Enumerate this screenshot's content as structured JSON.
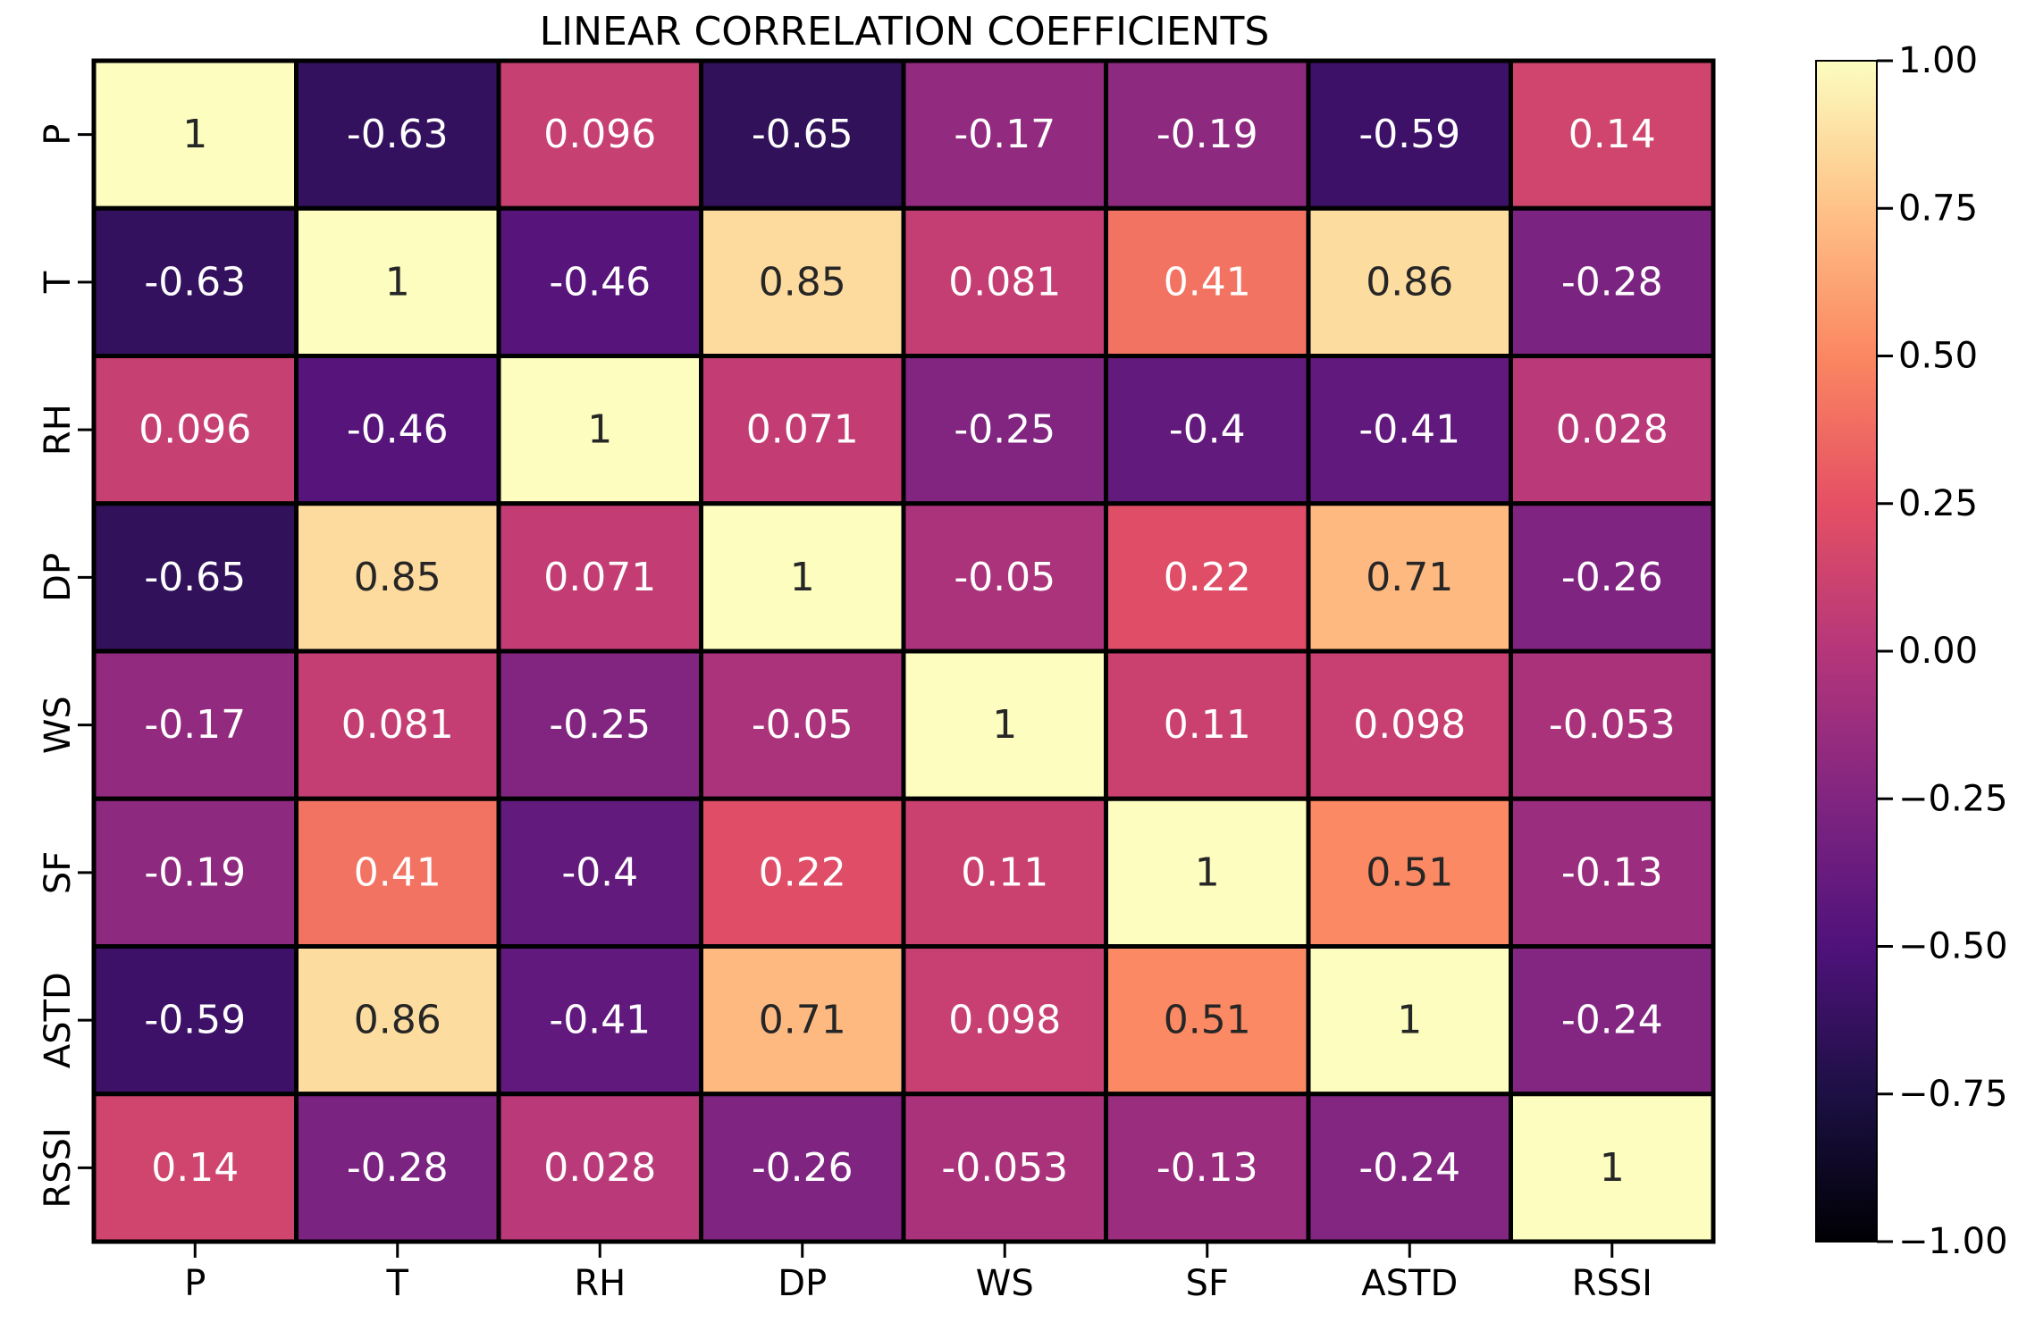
{
  "chart_data": {
    "type": "heatmap",
    "title": "LINEAR CORRELATION COEFFICIENTS",
    "xlabel": "",
    "ylabel": "",
    "x_labels": [
      "P",
      "T",
      "RH",
      "DP",
      "WS",
      "SF",
      "ASTD",
      "RSSI"
    ],
    "y_labels": [
      "P",
      "T",
      "RH",
      "DP",
      "WS",
      "SF",
      "ASTD",
      "RSSI"
    ],
    "values": [
      [
        1,
        -0.63,
        0.096,
        -0.65,
        -0.17,
        -0.19,
        -0.59,
        0.14
      ],
      [
        -0.63,
        1,
        -0.46,
        0.85,
        0.081,
        0.41,
        0.86,
        -0.28
      ],
      [
        0.096,
        -0.46,
        1,
        0.071,
        -0.25,
        -0.4,
        -0.41,
        0.028
      ],
      [
        -0.65,
        0.85,
        0.071,
        1,
        -0.05,
        0.22,
        0.71,
        -0.26
      ],
      [
        -0.17,
        0.081,
        -0.25,
        -0.05,
        1,
        0.11,
        0.098,
        -0.053
      ],
      [
        -0.19,
        0.41,
        -0.4,
        0.22,
        0.11,
        1,
        0.51,
        -0.13
      ],
      [
        -0.59,
        0.86,
        -0.41,
        0.71,
        0.098,
        0.51,
        1,
        -0.24
      ],
      [
        0.14,
        -0.28,
        0.028,
        -0.26,
        -0.053,
        -0.13,
        -0.24,
        1
      ]
    ],
    "annotations": [
      [
        "1",
        "-0.63",
        "0.096",
        "-0.65",
        "-0.17",
        "-0.19",
        "-0.59",
        "0.14"
      ],
      [
        "-0.63",
        "1",
        "-0.46",
        "0.85",
        "0.081",
        "0.41",
        "0.86",
        "-0.28"
      ],
      [
        "0.096",
        "-0.46",
        "1",
        "0.071",
        "-0.25",
        "-0.4",
        "-0.41",
        "0.028"
      ],
      [
        "-0.65",
        "0.85",
        "0.071",
        "1",
        "-0.05",
        "0.22",
        "0.71",
        "-0.26"
      ],
      [
        "-0.17",
        "0.081",
        "-0.25",
        "-0.05",
        "1",
        "0.11",
        "0.098",
        "-0.053"
      ],
      [
        "-0.19",
        "0.41",
        "-0.4",
        "0.22",
        "0.11",
        "1",
        "0.51",
        "-0.13"
      ],
      [
        "-0.59",
        "0.86",
        "-0.41",
        "0.71",
        "0.098",
        "0.51",
        "1",
        "-0.24"
      ],
      [
        "0.14",
        "-0.28",
        "0.028",
        "-0.26",
        "-0.053",
        "-0.13",
        "-0.24",
        "1"
      ]
    ],
    "colormap": "magma",
    "vmin": -1,
    "vmax": 1,
    "colorbar_ticks": [
      1.0,
      0.75,
      0.5,
      0.25,
      0.0,
      -0.25,
      -0.5,
      -0.75,
      -1.0
    ],
    "colorbar_tick_labels": [
      "1.00",
      "0.75",
      "0.50",
      "0.25",
      "0.00",
      "−0.25",
      "−0.50",
      "−0.75",
      "−1.00"
    ],
    "colormap_stops": [
      "#000004",
      "#1c1044",
      "#4f127b",
      "#812581",
      "#b5367a",
      "#e55064",
      "#fb8761",
      "#fec287",
      "#fcfdbf"
    ],
    "dark_text_color": "#262626",
    "light_text_color": "#ffffff",
    "cell_border_color": "#000000",
    "grid": false
  }
}
